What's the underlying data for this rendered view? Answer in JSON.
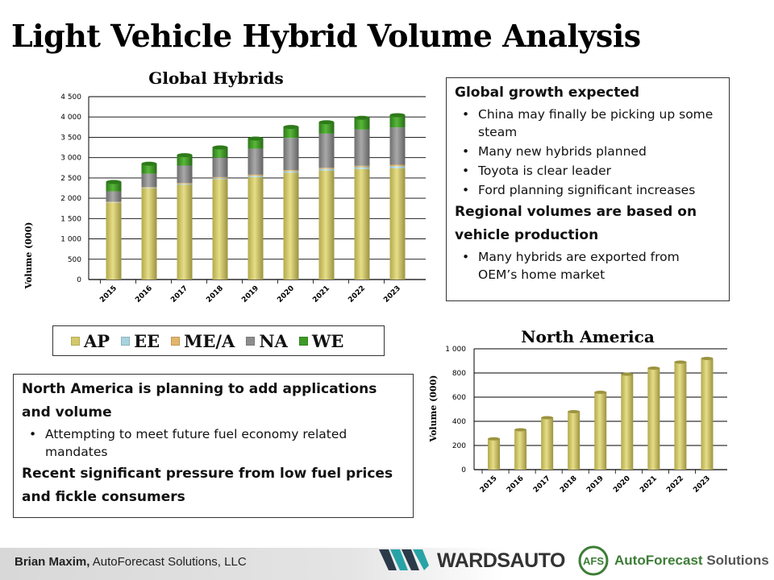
{
  "slide": {
    "title": "Light Vehicle Hybrid Volume Analysis"
  },
  "colors": {
    "AP": "#d4c96a",
    "EE": "#a7d3df",
    "ME/A": "#e3b56a",
    "NA": "#8d8d8d",
    "WE": "#3e9a26",
    "bar_single": "#d4c96a"
  },
  "chart_data": [
    {
      "type": "bar",
      "stacked": true,
      "title": "Global Hybrids",
      "xlabel": "",
      "ylabel": "Volume (000)",
      "ylim": [
        0,
        4500
      ],
      "yticks": [
        "4 500",
        "4 000",
        "3 500",
        "3 000",
        "2 500",
        "2 000",
        "1 500",
        "1 000",
        "500",
        "0"
      ],
      "categories": [
        "2015",
        "2016",
        "2017",
        "2018",
        "2019",
        "2020",
        "2021",
        "2022",
        "2023"
      ],
      "series": [
        {
          "name": "AP",
          "values": [
            1890,
            2240,
            2330,
            2470,
            2520,
            2630,
            2680,
            2720,
            2740
          ]
        },
        {
          "name": "EE",
          "values": [
            10,
            15,
            20,
            25,
            30,
            35,
            40,
            45,
            50
          ]
        },
        {
          "name": "ME/A",
          "values": [
            15,
            20,
            25,
            25,
            30,
            30,
            30,
            35,
            35
          ]
        },
        {
          "name": "NA",
          "values": [
            255,
            330,
            430,
            480,
            640,
            790,
            840,
            890,
            920
          ]
        },
        {
          "name": "WE",
          "values": [
            230,
            245,
            255,
            250,
            250,
            270,
            280,
            290,
            300
          ]
        }
      ],
      "grid": true,
      "legend": "bottom"
    },
    {
      "type": "bar",
      "title": "North America",
      "xlabel": "",
      "ylabel": "Volume (000)",
      "ylim": [
        0,
        1000
      ],
      "yticks": [
        "1 000",
        "800",
        "600",
        "400",
        "200",
        "0"
      ],
      "categories": [
        "2015",
        "2016",
        "2017",
        "2018",
        "2019",
        "2020",
        "2021",
        "2022",
        "2023"
      ],
      "values": [
        255,
        330,
        430,
        480,
        640,
        790,
        840,
        890,
        920
      ],
      "grid": true
    }
  ],
  "legend": {
    "items": [
      "AP",
      "EE",
      "ME/A",
      "NA",
      "WE"
    ]
  },
  "box_global": {
    "head1": "Global growth expected",
    "bullets1": [
      "China may finally be picking up some steam",
      "Many new hybrids planned",
      "Toyota is clear leader",
      "Ford planning significant increases"
    ],
    "head2": "Regional volumes are based on vehicle production",
    "bullets2": [
      "Many hybrids are exported from OEM’s home market"
    ]
  },
  "box_na": {
    "head1": "North America is planning to add applications and volume",
    "bullets1": [
      "Attempting to meet future fuel economy related mandates"
    ],
    "head2": "Recent significant pressure from low fuel prices and fickle consumers"
  },
  "footer": {
    "author_name": "Brian Maxim,",
    "author_org": "AutoForecast Solutions, LLC",
    "wards_logo_text": "WARDSAUTO",
    "afs_logo_mark": "AFS",
    "afs_logo_text_1": "AutoForecast",
    "afs_logo_text_2": "Solutions"
  }
}
